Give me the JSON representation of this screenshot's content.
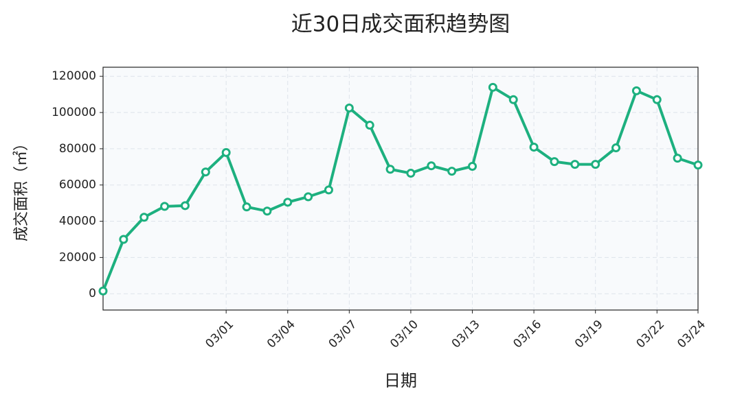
{
  "chart_data": {
    "type": "line",
    "title": "近30日成交面积趋势图",
    "x_label": "日期",
    "y_label": "成交面积（㎡）",
    "categories": [
      null,
      null,
      null,
      null,
      null,
      null,
      "03/01",
      null,
      null,
      "03/04",
      null,
      null,
      "03/07",
      null,
      null,
      "03/10",
      null,
      null,
      "03/13",
      null,
      null,
      "03/16",
      null,
      null,
      "03/19",
      null,
      null,
      "03/22",
      null,
      "03/24"
    ],
    "values": [
      1500,
      30000,
      42200,
      48200,
      48600,
      67200,
      77900,
      47900,
      45600,
      50500,
      53500,
      57300,
      102500,
      93000,
      68700,
      66500,
      70600,
      67600,
      70300,
      113900,
      107100,
      80900,
      72900,
      71400,
      71400,
      80500,
      112000,
      107100,
      74800,
      71000
    ],
    "color": "#1db07f",
    "ylim": [
      -9000,
      125000
    ],
    "yticks": [
      0,
      20000,
      40000,
      60000,
      80000,
      100000,
      120000
    ],
    "grid": true
  }
}
